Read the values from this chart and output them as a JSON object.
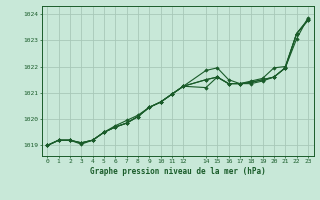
{
  "title": "Graphe pression niveau de la mer (hPa)",
  "bg_color": "#c8e8d8",
  "grid_color": "#a8c8b8",
  "line_color": "#1a5c2a",
  "marker_color": "#1a5c2a",
  "xlim": [
    -0.5,
    23.5
  ],
  "ylim": [
    1018.6,
    1024.3
  ],
  "yticks": [
    1019,
    1020,
    1021,
    1022,
    1023,
    1024
  ],
  "xticks": [
    0,
    1,
    2,
    3,
    4,
    5,
    6,
    7,
    8,
    9,
    10,
    11,
    12,
    14,
    15,
    16,
    17,
    18,
    19,
    20,
    21,
    22,
    23
  ],
  "xtick_labels": [
    "0",
    "1",
    "2",
    "3",
    "4",
    "5",
    "6",
    "7",
    "8",
    "9",
    "10",
    "11",
    "12",
    "14",
    "15",
    "16",
    "17",
    "18",
    "19",
    "20",
    "21",
    "22",
    "23"
  ],
  "series": [
    [
      1019.0,
      1019.2,
      1019.2,
      1019.1,
      1019.2,
      1019.5,
      1019.7,
      1019.85,
      1020.1,
      1020.45,
      1020.65,
      1020.95,
      1021.25,
      1021.5,
      1021.6,
      1021.35,
      1021.35,
      1021.45,
      1021.55,
      1021.95,
      1022.0,
      1023.25,
      1023.8
    ],
    [
      1019.0,
      1019.2,
      1019.2,
      1019.05,
      1019.2,
      1019.5,
      1019.75,
      1019.95,
      1020.15,
      1020.45,
      1020.65,
      1020.95,
      1021.25,
      1021.85,
      1021.95,
      1021.5,
      1021.35,
      1021.35,
      1021.45,
      1021.6,
      1021.95,
      1023.05,
      1023.85
    ],
    [
      1019.0,
      1019.2,
      1019.2,
      1019.1,
      1019.2,
      1019.5,
      1019.7,
      1019.85,
      1020.1,
      1020.45,
      1020.65,
      1020.95,
      1021.25,
      1021.2,
      1021.6,
      1021.35,
      1021.35,
      1021.4,
      1021.5,
      1021.6,
      1021.95,
      1023.25,
      1023.75
    ],
    [
      1019.0,
      1019.2,
      1019.2,
      1019.1,
      1019.2,
      1019.5,
      1019.7,
      1019.85,
      1020.1,
      1020.45,
      1020.65,
      1020.95,
      1021.25,
      1021.5,
      1021.6,
      1021.35,
      1021.35,
      1021.4,
      1021.5,
      1021.6,
      1021.95,
      1023.25,
      1023.75
    ]
  ],
  "x_hours": [
    0,
    1,
    2,
    3,
    4,
    5,
    6,
    7,
    8,
    9,
    10,
    11,
    12,
    14,
    15,
    16,
    17,
    18,
    19,
    20,
    21,
    22,
    23
  ],
  "figsize": [
    3.2,
    2.0
  ],
  "dpi": 100
}
